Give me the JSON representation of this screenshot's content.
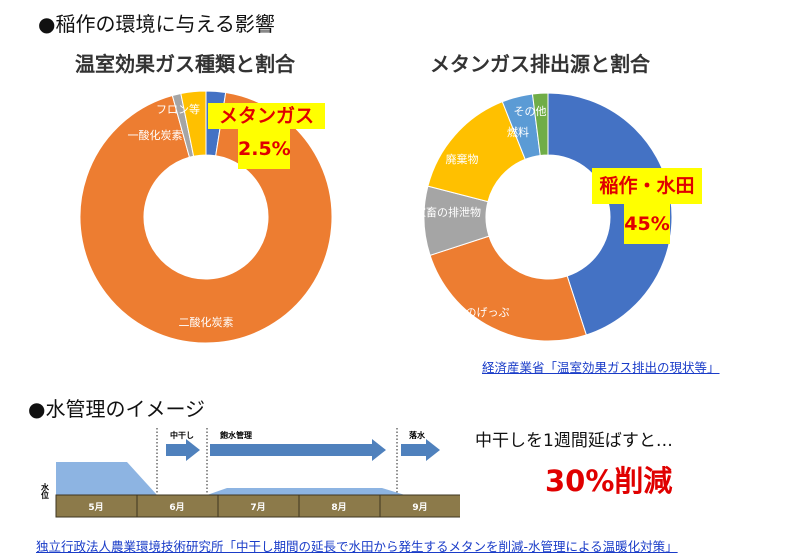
{
  "heading1": "●稲作の環境に与える影響",
  "heading2": "●水管理のイメージ",
  "chart_data": [
    {
      "type": "pie",
      "title": "温室効果ガス種類と割合",
      "categories": [
        "メタンガス",
        "二酸化炭素",
        "一酸化炭素",
        "フロン等"
      ],
      "values": [
        2.5,
        93.2,
        1.1,
        3.2
      ],
      "colors": [
        "#4472c4",
        "#ed7d31",
        "#a5a5a5",
        "#ffc000"
      ],
      "callout": {
        "label": "メタンガス",
        "value": "2.5%"
      }
    },
    {
      "type": "pie",
      "title": "メタンガス排出源と割合",
      "categories": [
        "稲作・水田",
        "牛のげっぷ",
        "家畜の排泄物",
        "廃棄物",
        "燃料",
        "その他"
      ],
      "values": [
        45,
        25,
        9,
        15,
        4,
        2
      ],
      "colors": [
        "#4472c4",
        "#ed7d31",
        "#a5a5a5",
        "#ffc000",
        "#5b9bd5",
        "#70ad47"
      ],
      "callout": {
        "label": "稲作・水田",
        "value": "45%"
      }
    }
  ],
  "source1": "経済産業省「温室効果ガス排出の現状等」",
  "water": {
    "months": [
      "5月",
      "6月",
      "7月",
      "8月",
      "9月"
    ],
    "phases": [
      "中干し",
      "飽水管理",
      "落水"
    ],
    "water_level_label": "水位",
    "message": "中干しを1週間延ばすと…",
    "result": "30%削減"
  },
  "source2": "独立行政法人農業環境技術研究所「中干し期間の延長で水田から発生するメタンを削減-水管理による温暖化対策」"
}
